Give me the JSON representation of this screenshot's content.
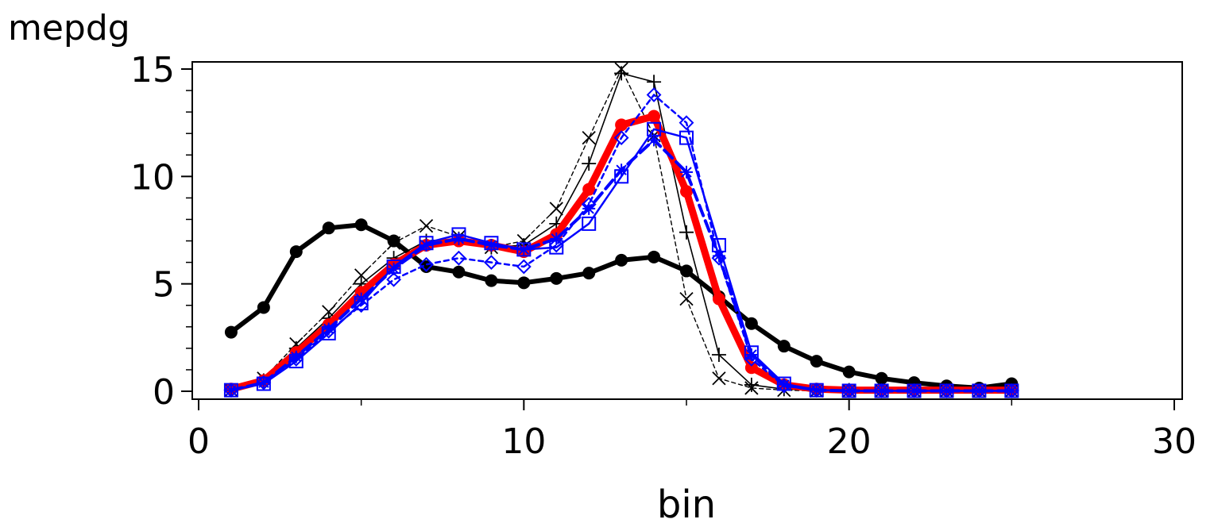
{
  "chart_data": {
    "type": "line",
    "xlabel": "bin",
    "ylabel": "mepdg",
    "xlim": [
      0,
      30
    ],
    "ylim": [
      0,
      15
    ],
    "x_ticks": [
      0,
      10,
      20,
      30
    ],
    "y_ticks": [
      0,
      5,
      10,
      15
    ],
    "x_minor_ticks": [
      5,
      15,
      25
    ],
    "y_minor_ticks": [
      1,
      2,
      3,
      4,
      6,
      7,
      8,
      9,
      11,
      12,
      13,
      14
    ],
    "x_tick_labels": [
      "0",
      "10",
      "20",
      "30"
    ],
    "y_tick_labels": [
      "0",
      "5",
      "10",
      "15"
    ],
    "grid": false,
    "x": [
      1,
      2,
      3,
      4,
      5,
      6,
      7,
      8,
      9,
      10,
      11,
      12,
      13,
      14,
      15,
      16,
      17,
      18,
      19,
      20,
      21,
      22,
      23,
      24,
      25
    ],
    "series": [
      {
        "color": "#000000",
        "marker": "dot",
        "stroke": "thick-solid",
        "values": [
          2.75,
          3.9,
          6.5,
          7.6,
          7.75,
          7.0,
          5.8,
          5.55,
          5.15,
          5.05,
          5.25,
          5.5,
          6.1,
          6.25,
          5.6,
          4.4,
          3.15,
          2.1,
          1.4,
          0.9,
          0.6,
          0.4,
          0.25,
          0.15,
          0.35
        ]
      },
      {
        "color": "#000000",
        "marker": "plus",
        "stroke": "thin-solid",
        "values": [
          0.05,
          0.5,
          2.0,
          3.4,
          5.0,
          6.2,
          7.0,
          7.1,
          6.7,
          6.8,
          7.8,
          10.6,
          14.8,
          14.4,
          7.4,
          1.7,
          0.3,
          0.1,
          0.05,
          0.05,
          0.05,
          0.05,
          0.05,
          0.05,
          0.05
        ]
      },
      {
        "color": "#000000",
        "marker": "x",
        "stroke": "thin-dashed",
        "values": [
          0.05,
          0.6,
          2.2,
          3.7,
          5.4,
          6.9,
          7.7,
          7.2,
          6.7,
          7.0,
          8.5,
          11.8,
          15.0,
          11.9,
          4.3,
          0.6,
          0.15,
          0.05,
          0.02,
          0.02,
          0.02,
          0.02,
          0.02,
          0.02,
          0.02
        ]
      },
      {
        "color": "#ff0000",
        "marker": "dot",
        "stroke": "extra-thick-solid",
        "values": [
          0.1,
          0.5,
          1.8,
          3.1,
          4.6,
          5.9,
          6.8,
          7.0,
          6.8,
          6.5,
          7.3,
          9.4,
          12.4,
          12.8,
          9.3,
          4.3,
          1.1,
          0.3,
          0.1,
          0.05,
          0.05,
          0.05,
          0.05,
          0.05,
          0.05
        ]
      },
      {
        "color": "#0000ff",
        "marker": "square",
        "stroke": "solid",
        "values": [
          0.05,
          0.35,
          1.4,
          2.7,
          4.1,
          5.8,
          6.9,
          7.3,
          6.9,
          6.6,
          6.7,
          7.8,
          10.0,
          12.2,
          11.8,
          6.8,
          1.8,
          0.35,
          0.05,
          0.02,
          0.02,
          0.02,
          0.02,
          0.02,
          0.02
        ]
      },
      {
        "color": "#0000ff",
        "marker": "diamond",
        "stroke": "dashed",
        "values": [
          0.05,
          0.4,
          1.5,
          2.8,
          4.0,
          5.2,
          5.9,
          6.2,
          6.0,
          5.8,
          6.8,
          8.7,
          11.8,
          13.8,
          12.5,
          6.2,
          1.5,
          0.25,
          0.05,
          0.02,
          0.02,
          0.02,
          0.02,
          0.02,
          0.02
        ]
      },
      {
        "color": "#0000ff",
        "marker": "star",
        "stroke": "thick-dashed",
        "values": [
          0.05,
          0.4,
          1.6,
          2.9,
          4.3,
          5.7,
          6.8,
          7.1,
          6.8,
          6.6,
          7.1,
          8.5,
          10.3,
          11.7,
          10.2,
          6.3,
          1.7,
          0.3,
          0.05,
          0.02,
          0.02,
          0.02,
          0.02,
          0.02,
          0.02
        ]
      }
    ]
  }
}
